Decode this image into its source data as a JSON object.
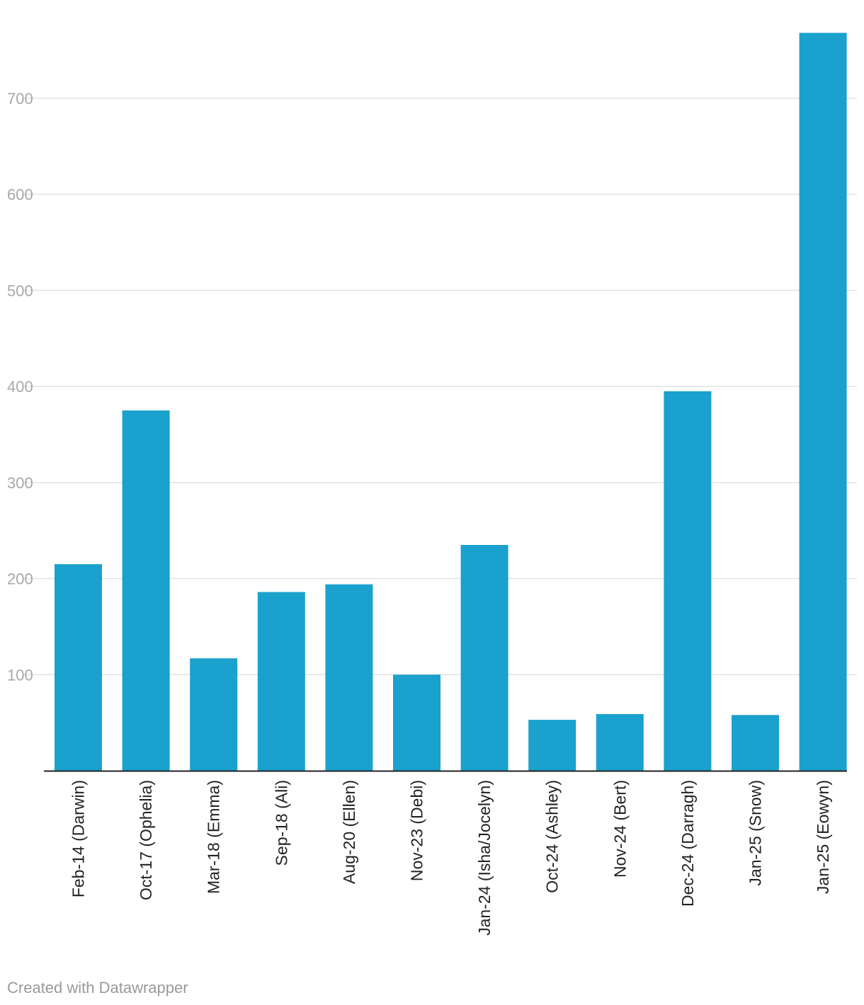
{
  "chart_data": {
    "type": "bar",
    "categories": [
      "Feb-14 (Darwin)",
      "Oct-17 (Ophelia)",
      "Mar-18 (Emma)",
      "Sep-18 (Ali)",
      "Aug-20 (Ellen)",
      "Nov-23 (Debi)",
      "Jan-24 (Isha/Jocelyn)",
      "Oct-24 (Ashley)",
      "Nov-24 (Bert)",
      "Dec-24 (Darragh)",
      "Jan-25 (Snow)",
      "Jan-25 (Eowyn)"
    ],
    "values": [
      215,
      375,
      117,
      186,
      194,
      100,
      235,
      53,
      59,
      395,
      58,
      768
    ],
    "yticks": [
      100,
      200,
      300,
      400,
      500,
      600,
      700
    ],
    "ylim": [
      0,
      768
    ],
    "grid": true,
    "bar_color": "#1aa1cd",
    "title": "",
    "xlabel": "",
    "ylabel": ""
  },
  "footer": {
    "credit": "Created with Datawrapper"
  }
}
